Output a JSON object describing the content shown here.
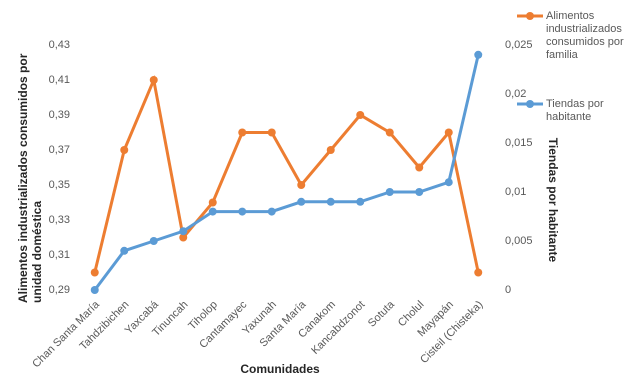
{
  "chart_data": {
    "type": "line",
    "x_label": "Comunidades",
    "y_label": "Alimentos industrializados consumidos por unidad doméstica",
    "y2_label": "Tiendas por habitante",
    "categories": [
      "Chan Santa María",
      "Tahdzibichen",
      "Yaxcabá",
      "Tinuncah",
      "Tiholop",
      "Cantamayec",
      "Yaxunah",
      "Santa María",
      "Canakom",
      "Kancabdzonot",
      "Sotuta",
      "Cholul",
      "Mayapán",
      "Cisteil (Chisteka)"
    ],
    "series": [
      {
        "name": "Alimentos industrializados consumidos por familia",
        "color": "#ed7d31",
        "values": [
          0.3,
          0.37,
          0.41,
          0.32,
          0.34,
          0.38,
          0.38,
          0.35,
          0.37,
          0.39,
          0.38,
          0.36,
          0.38,
          0.3
        ]
      },
      {
        "name": "Tiendas por habitante",
        "color": "#5b9bd5",
        "axis": "y2",
        "values": [
          0,
          0.004,
          0.005,
          0.006,
          0.008,
          0.008,
          0.008,
          0.009,
          0.009,
          0.009,
          0.01,
          0.01,
          0.011,
          0.024
        ]
      }
    ],
    "ylim": [
      0.29,
      0.43
    ],
    "yticks": [
      {
        "value": 0.29,
        "label": "0,29"
      },
      {
        "value": 0.31,
        "label": "0,31"
      },
      {
        "value": 0.33,
        "label": "0,33"
      },
      {
        "value": 0.35,
        "label": "0,35"
      },
      {
        "value": 0.37,
        "label": "0,37"
      },
      {
        "value": 0.39,
        "label": "0,39"
      },
      {
        "value": 0.41,
        "label": "0,41"
      },
      {
        "value": 0.43,
        "label": "0,43"
      }
    ],
    "y2lim": [
      0,
      0.025
    ],
    "y2ticks": [
      0,
      {
        "value": 0.005,
        "label": "0,005"
      },
      {
        "value": 0.01,
        "label": "0,01"
      },
      {
        "value": 0.015,
        "label": "0,015"
      },
      {
        "value": 0.02,
        "label": "0,02"
      },
      {
        "value": 0.025,
        "label": "0,025"
      }
    ],
    "grid": false,
    "legend": "upper right"
  }
}
